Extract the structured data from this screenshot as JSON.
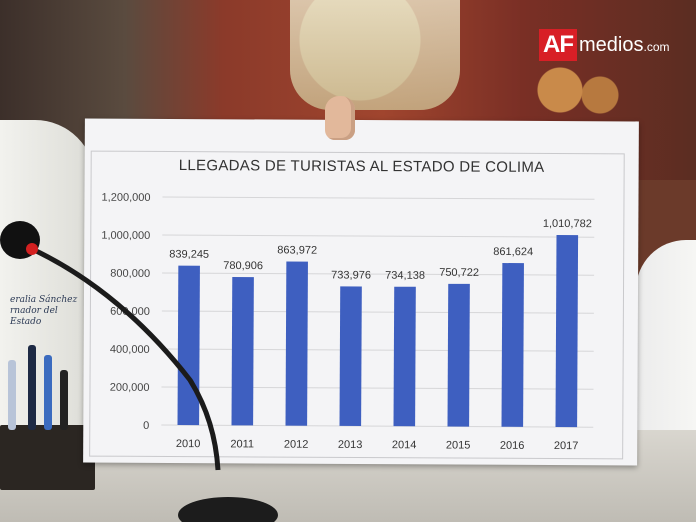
{
  "watermark": {
    "brand_af": "AF",
    "brand_medios": "medios",
    "brand_tld": ".com"
  },
  "nameplate": {
    "line1": "eralia Sánchez",
    "line2": "rnador del Estado"
  },
  "chart_data": {
    "type": "bar",
    "title": "LLEGADAS DE TURISTAS AL ESTADO DE COLIMA",
    "xlabel": "",
    "ylabel": "",
    "categories": [
      "2010",
      "2011",
      "2012",
      "2013",
      "2014",
      "2015",
      "2016",
      "2017"
    ],
    "values": [
      839245,
      780906,
      863972,
      733976,
      734138,
      750722,
      861624,
      1010782
    ],
    "value_labels": [
      "839,245",
      "780,906",
      "863,972",
      "733,976",
      "734,138",
      "750,722",
      "861,624",
      "1,010,782"
    ],
    "ylim": [
      0,
      1200000
    ],
    "yticks": [
      0,
      200000,
      400000,
      600000,
      800000,
      1000000,
      1200000
    ],
    "ytick_labels": [
      "0",
      "200,000",
      "400,000",
      "600,000",
      "800,000",
      "1,000,000",
      "1,200,000"
    ],
    "grid": true,
    "bar_color": "#3e5fc0"
  }
}
